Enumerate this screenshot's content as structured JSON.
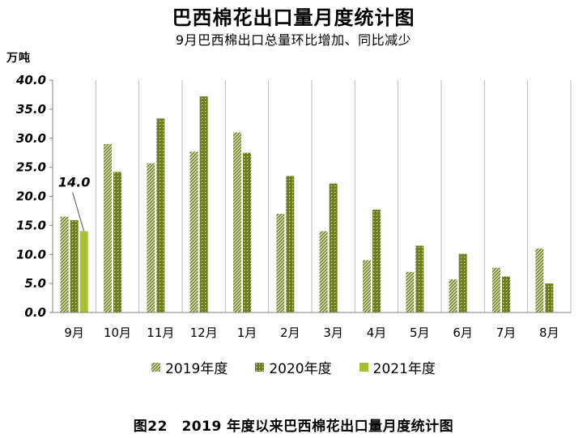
{
  "title": "巴西棉花出口量月度统计图",
  "subtitle": "9月巴西棉出口总量环比增加、同比减少",
  "unit": "万吨",
  "caption": "图22　2019 年度以来巴西棉花出口量月度统计图",
  "annotation": {
    "series": 2,
    "category": 0,
    "text": "14.0"
  },
  "colors": {
    "s2019_light": "#d6dcae",
    "s2019_dark": "#6e7a23",
    "s2020": "#6e7f1f",
    "s2020_dot": "#e4ead0",
    "s2021": "#a9bf2e",
    "grid": "#b8b8b8",
    "axis": "#7f7f7f"
  },
  "chart_data": {
    "type": "bar",
    "categories": [
      "9月",
      "10月",
      "11月",
      "12月",
      "1月",
      "2月",
      "3月",
      "4月",
      "5月",
      "6月",
      "7月",
      "8月"
    ],
    "series": [
      {
        "name": "2019年度",
        "values": [
          16.5,
          29.0,
          25.7,
          27.7,
          31.0,
          17.0,
          14.0,
          9.0,
          7.0,
          5.7,
          7.7,
          11.0
        ]
      },
      {
        "name": "2020年度",
        "values": [
          15.9,
          24.2,
          33.4,
          37.2,
          27.5,
          23.5,
          22.2,
          17.7,
          11.5,
          10.1,
          6.2,
          5.0
        ]
      },
      {
        "name": "2021年度",
        "values": [
          14.0,
          null,
          null,
          null,
          null,
          null,
          null,
          null,
          null,
          null,
          null,
          null
        ]
      }
    ],
    "ylim": [
      0,
      40
    ],
    "yticks": [
      "0.0",
      "5.0",
      "10.0",
      "15.0",
      "20.0",
      "25.0",
      "30.0",
      "35.0",
      "40.0"
    ],
    "ylabel": "万吨",
    "grid": "vertical",
    "legend": "bottom"
  }
}
